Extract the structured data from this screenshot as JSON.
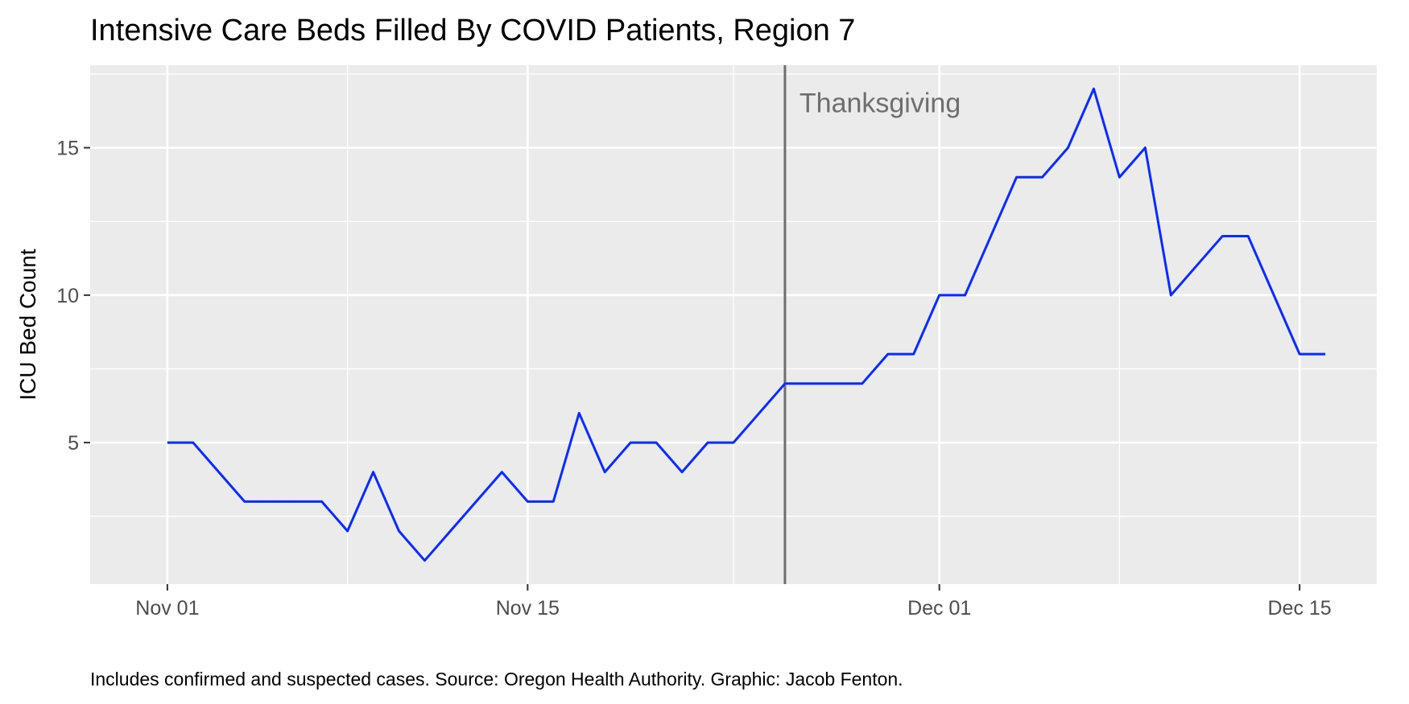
{
  "chart_data": {
    "type": "line",
    "title": "Intensive Care Beds Filled By COVID Patients, Region 7",
    "ylabel": "ICU Bed Count",
    "xlabel": "",
    "caption": "Includes confirmed and suspected cases. Source: Oregon Health Authority. Graphic: Jacob Fenton.",
    "x_ticks": [
      {
        "date": "2020-11-01",
        "label": "Nov 01"
      },
      {
        "date": "2020-11-15",
        "label": "Nov 15"
      },
      {
        "date": "2020-12-01",
        "label": "Dec 01"
      },
      {
        "date": "2020-12-15",
        "label": "Dec 15"
      }
    ],
    "x_minor_gridlines": [
      "2020-11-08",
      "2020-11-23",
      "2020-12-08"
    ],
    "y_ticks": [
      5,
      10,
      15
    ],
    "y_minor_gridlines": [
      2.5,
      7.5,
      12.5,
      17.5
    ],
    "xlim": [
      "2020-10-29",
      "2020-12-18"
    ],
    "ylim": [
      0.2,
      17.8
    ],
    "grid": true,
    "line_color": "#0a2bff",
    "annotation": {
      "date": "2020-11-25",
      "label": "Thanksgiving",
      "color": "#6e6e6e"
    },
    "series": [
      {
        "x": [
          "2020-11-01",
          "2020-11-02",
          "2020-11-03",
          "2020-11-04",
          "2020-11-05",
          "2020-11-06",
          "2020-11-07",
          "2020-11-08",
          "2020-11-09",
          "2020-11-10",
          "2020-11-11",
          "2020-11-12",
          "2020-11-13",
          "2020-11-14",
          "2020-11-15",
          "2020-11-16",
          "2020-11-17",
          "2020-11-18",
          "2020-11-19",
          "2020-11-20",
          "2020-11-21",
          "2020-11-22",
          "2020-11-23",
          "2020-11-24",
          "2020-11-25",
          "2020-11-26",
          "2020-11-27",
          "2020-11-28",
          "2020-11-29",
          "2020-11-30",
          "2020-12-01",
          "2020-12-02",
          "2020-12-03",
          "2020-12-04",
          "2020-12-05",
          "2020-12-06",
          "2020-12-07",
          "2020-12-08",
          "2020-12-09",
          "2020-12-10",
          "2020-12-11",
          "2020-12-12",
          "2020-12-13",
          "2020-12-14",
          "2020-12-15",
          "2020-12-16"
        ],
        "values": [
          5,
          5,
          4,
          3,
          3,
          3,
          3,
          2,
          4,
          2,
          1,
          2,
          3,
          4,
          3,
          3,
          6,
          4,
          5,
          5,
          4,
          5,
          5,
          6,
          7,
          7,
          7,
          7,
          8,
          8,
          10,
          10,
          12,
          14,
          14,
          15,
          17,
          14,
          15,
          10,
          11,
          12,
          12,
          10,
          8,
          8
        ]
      }
    ]
  }
}
